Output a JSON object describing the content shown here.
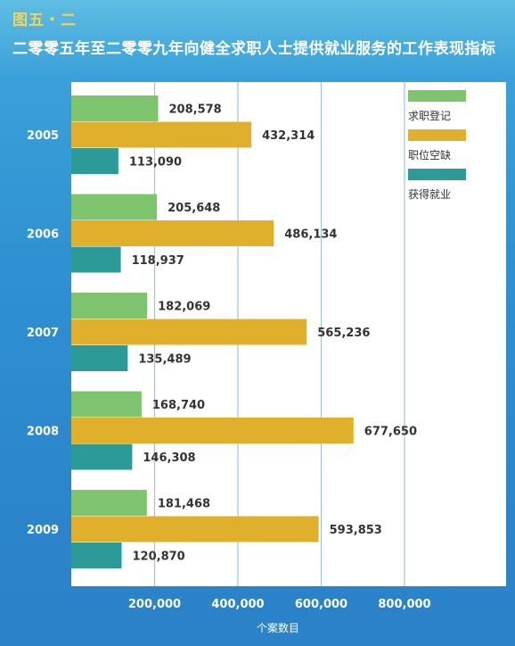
{
  "figure_label": "图五・二",
  "title": "二零零五年至二零零九年向健全求职人士提供就业服务的工作表现指标",
  "colors": {
    "series1": "#7ec46e",
    "series2": "#e0b02c",
    "series3": "#2c9b98",
    "plot_bg": "#ffffff",
    "grid": "#9fc3dd"
  },
  "chart_data": {
    "type": "bar",
    "orientation": "horizontal",
    "categories": [
      "2005",
      "2006",
      "2007",
      "2008",
      "2009"
    ],
    "series": [
      {
        "name": "求职登记",
        "values": [
          208578,
          205648,
          182069,
          168740,
          181468
        ],
        "labels": [
          "208,578",
          "205,648",
          "182,069",
          "168,740",
          "181,468"
        ]
      },
      {
        "name": "职位空缺",
        "values": [
          432314,
          486134,
          565236,
          677650,
          593853
        ],
        "labels": [
          "432,314",
          "486,134",
          "565,236",
          "677,650",
          "593,853"
        ]
      },
      {
        "name": "获得就业",
        "values": [
          113090,
          118937,
          135489,
          146308,
          120870
        ],
        "labels": [
          "113,090",
          "118,937",
          "135,489",
          "146,308",
          "120,870"
        ]
      }
    ],
    "xlabel": "个案数目",
    "xlim": [
      0,
      1000000
    ],
    "xticks": [
      200000,
      400000,
      600000,
      800000
    ],
    "xtick_labels": [
      "200,000",
      "400,000",
      "600,000",
      "800,000"
    ],
    "grid": true,
    "legend_position": "top-right"
  }
}
